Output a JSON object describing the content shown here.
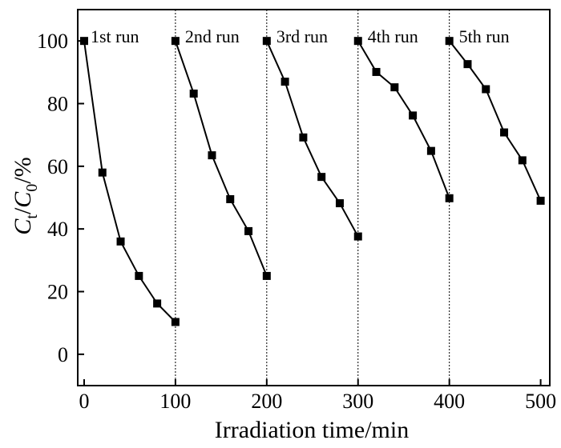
{
  "chart_data": {
    "type": "line",
    "xlabel": "Irradiation time/min",
    "ylabel": {
      "base": "C",
      "sub_t": "t",
      "sep": "/",
      "base2": "C",
      "sub_0": "0",
      "unit": "/%"
    },
    "xlim": [
      -7,
      510
    ],
    "ylim": [
      -10,
      110
    ],
    "xticks": [
      0,
      100,
      200,
      300,
      400,
      500
    ],
    "yticks": [
      0,
      20,
      40,
      60,
      80,
      100
    ],
    "xtick_labels": [
      "0",
      "100",
      "200",
      "300",
      "400",
      "500"
    ],
    "ytick_labels": [
      "0",
      "20",
      "40",
      "60",
      "80",
      "100"
    ],
    "separators": [
      100,
      200,
      300,
      400
    ],
    "grid": false,
    "marker": "square",
    "color": "#000000",
    "series": [
      {
        "label": "1st run",
        "x": [
          0,
          20,
          40,
          60,
          80,
          100
        ],
        "y": [
          100,
          58,
          36,
          25,
          16.2,
          10.3
        ]
      },
      {
        "label": "2nd run",
        "x": [
          100,
          120,
          140,
          160,
          180,
          200
        ],
        "y": [
          100,
          83.2,
          63.5,
          49.5,
          39.3,
          25
        ]
      },
      {
        "label": "3rd run",
        "x": [
          200,
          220,
          240,
          260,
          280,
          300
        ],
        "y": [
          100,
          87,
          69.2,
          56.6,
          48.2,
          37.6
        ]
      },
      {
        "label": "4th run",
        "x": [
          300,
          320,
          340,
          360,
          380,
          400
        ],
        "y": [
          100,
          90.1,
          85.2,
          76.2,
          64.9,
          49.8
        ]
      },
      {
        "label": "5th run",
        "x": [
          400,
          420,
          440,
          460,
          480,
          500
        ],
        "y": [
          100,
          92.6,
          84.6,
          70.8,
          61.9,
          49
        ]
      }
    ]
  }
}
